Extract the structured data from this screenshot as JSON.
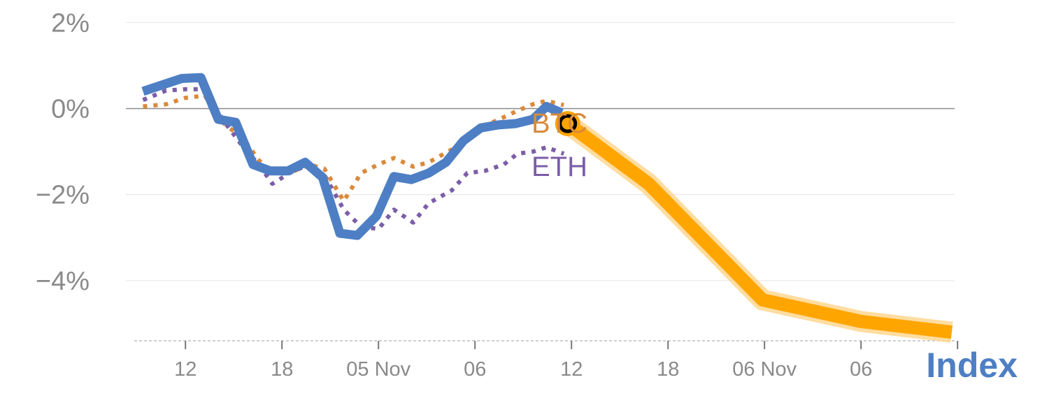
{
  "colors": {
    "index": "#4e7fc4",
    "btc": "#d98a3c",
    "eth": "#7b5ea7",
    "forecast": "#ffa500",
    "forecast_glow": "#ffd58a",
    "grid": "#e8e8e8",
    "zero": "#8a8a8a",
    "tick": "#8a8a8a"
  },
  "chart_data": {
    "type": "line",
    "ylim": [
      -5.4,
      2.2
    ],
    "yticks": [
      {
        "value": 2,
        "label": "2%"
      },
      {
        "value": 0,
        "label": "0%"
      },
      {
        "value": -2,
        "label": "−2%"
      },
      {
        "value": -4,
        "label": "−4%"
      }
    ],
    "x_domain": [
      0,
      45
    ],
    "xticks": [
      {
        "x": 2,
        "label": "12"
      },
      {
        "x": 7,
        "label": "18"
      },
      {
        "x": 12,
        "label": "05 Nov"
      },
      {
        "x": 17,
        "label": "06"
      },
      {
        "x": 22,
        "label": "12"
      },
      {
        "x": 27,
        "label": "18"
      },
      {
        "x": 32,
        "label": "06 Nov"
      },
      {
        "x": 37,
        "label": "06"
      },
      {
        "x": 42,
        "label": ""
      }
    ],
    "series": [
      {
        "name": "Index",
        "style": "solid",
        "x": [
          -0.2,
          0.8,
          1.8,
          2.8,
          3.7,
          4.6,
          5.5,
          6.4,
          7.3,
          8.2,
          9.1,
          10.0,
          10.9,
          11.9,
          12.8,
          13.7,
          14.6,
          15.5,
          16.4,
          17.3,
          18.2,
          19.1,
          20.0,
          20.7,
          21.5
        ],
        "y": [
          0.4,
          0.55,
          0.7,
          0.72,
          -0.25,
          -0.32,
          -1.3,
          -1.45,
          -1.45,
          -1.25,
          -1.6,
          -2.9,
          -2.95,
          -2.5,
          -1.58,
          -1.65,
          -1.5,
          -1.25,
          -0.75,
          -0.45,
          -0.38,
          -0.35,
          -0.25,
          0.05,
          -0.1
        ]
      },
      {
        "name": "BTC",
        "style": "dotted",
        "x": [
          -0.2,
          1.0,
          2.0,
          3.0,
          4.0,
          5.0,
          5.8,
          6.5,
          7.4,
          8.4,
          9.2,
          10.2,
          11.1,
          12.0,
          12.8,
          13.8,
          14.6,
          15.8,
          16.6,
          17.5,
          18.5,
          19.2,
          20.0,
          20.7,
          21.6
        ],
        "y": [
          0.05,
          0.1,
          0.25,
          0.3,
          -0.35,
          -0.7,
          -1.2,
          -1.5,
          -1.5,
          -1.3,
          -1.4,
          -2.15,
          -1.5,
          -1.3,
          -1.15,
          -1.35,
          -1.25,
          -0.95,
          -0.65,
          -0.4,
          -0.2,
          -0.05,
          0.1,
          0.18,
          0.08
        ]
      },
      {
        "name": "ETH",
        "style": "dotted",
        "x": [
          -0.2,
          1.0,
          2.0,
          3.0,
          4.0,
          5.0,
          5.8,
          6.5,
          7.4,
          8.4,
          9.2,
          10.2,
          11.1,
          12.0,
          12.8,
          13.8,
          14.6,
          15.8,
          16.6,
          17.5,
          18.5,
          19.2,
          20.0,
          20.7,
          21.6
        ],
        "y": [
          0.2,
          0.42,
          0.45,
          0.45,
          -0.3,
          -0.9,
          -1.3,
          -1.75,
          -1.5,
          -1.3,
          -1.55,
          -2.35,
          -2.75,
          -2.8,
          -2.35,
          -2.65,
          -2.2,
          -1.9,
          -1.5,
          -1.45,
          -1.3,
          -1.05,
          -1.0,
          -0.9,
          -1.05
        ]
      },
      {
        "name": "forecast",
        "style": "thick",
        "x": [
          21.8,
          26.0,
          31.9,
          37.0,
          41.7
        ],
        "y": [
          -0.35,
          -1.75,
          -4.45,
          -4.95,
          -5.2
        ]
      }
    ],
    "series_labels": {
      "btc": "BTC",
      "eth": "ETH",
      "index": "Index"
    },
    "marker": {
      "x": 21.8,
      "y": -0.35
    },
    "legend": "none",
    "grid": true
  }
}
